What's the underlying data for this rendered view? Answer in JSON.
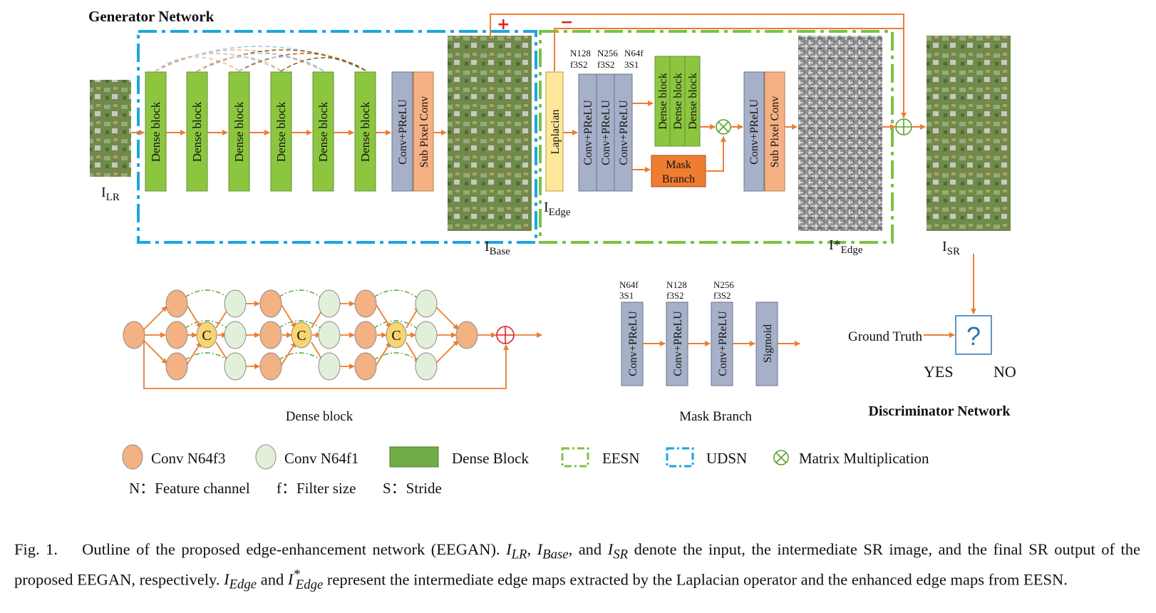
{
  "generator": {
    "title": "Generator Network",
    "input_label": "I",
    "input_sub": "LR",
    "dense_block_label": "Dense block",
    "dense_blocks": [
      "Dense block",
      "Dense block",
      "Dense block",
      "Dense block",
      "Dense block",
      "Dense block"
    ],
    "conv_prelu": "Conv+PReLU",
    "sub_pixel": "Sub Pixel Conv",
    "base_label": "I",
    "base_sub": "Base",
    "plus_sign": "+",
    "minus_sign": "−"
  },
  "eesn": {
    "laplacian": "Laplacian",
    "edge_label": "I",
    "edge_sub": "Edge",
    "conv_params": [
      [
        "N128",
        "f3S2"
      ],
      [
        "N256",
        "f3S2"
      ],
      [
        "N64f",
        "3S1"
      ]
    ],
    "conv_labels": [
      "Conv+PReLU",
      "Conv+PReLU",
      "Conv+PReLU"
    ],
    "dense_blocks": [
      "Dense block",
      "Dense block",
      "Dense block"
    ],
    "mask_branch": [
      "Mask",
      "Branch"
    ],
    "conv_prelu": "Conv+PReLU",
    "sub_pixel": "Sub Pixel Conv",
    "edge_star_label": "I*",
    "edge_star_sub": "Edge"
  },
  "output": {
    "sr_label": "I",
    "sr_sub": "SR"
  },
  "dense_block_detail": {
    "title": "Dense block",
    "concat": "C"
  },
  "mask_branch_detail": {
    "title": "Mask Branch",
    "params": [
      [
        "N64f",
        "3S1"
      ],
      [
        "N128",
        "f3S2"
      ],
      [
        "N256",
        "f3S2"
      ]
    ],
    "blocks": [
      "Conv+PReLU",
      "Conv+PReLU",
      "Conv+PReLU",
      "Sigmoid"
    ]
  },
  "discriminator": {
    "title": "Discriminator Network",
    "ground_truth": "Ground Truth",
    "question": "?",
    "yes": "YES",
    "no": "NO"
  },
  "legend": {
    "items": [
      "Conv N64f3",
      "Conv N64f1",
      "Dense Block",
      "EESN",
      "UDSN",
      "Matrix Multiplication"
    ],
    "abbrev": [
      "N：Feature channel",
      "f：Filter size",
      "S：Stride"
    ]
  },
  "caption": {
    "fig": "Fig. 1.",
    "text1": "Outline of the proposed edge-enhancement network (EEGAN).",
    "sym_lr": "I",
    "sub_lr": "LR",
    "sym_base": "I",
    "sub_base": "Base",
    "text2": ", and",
    "sym_sr": "I",
    "sub_sr": "SR",
    "text3": "denote the input, the intermediate SR image, and the final SR output of the proposed EEGAN, respectively.",
    "sym_edge": "I",
    "sub_edge": "Edge",
    "text4": "and",
    "sym_edge2": "I",
    "sup_edge2": "*",
    "sub_edge2": "Edge",
    "text5": "represent the intermediate edge maps extracted by the Laplacian operator and the enhanced edge maps from EESN."
  },
  "colors": {
    "dense_green": "#8cc63f",
    "conv_gray": "#a6b0c8",
    "subpixel_orange": "#f5b183",
    "laplacian_yellow": "#fde79a",
    "mask_orange": "#ee7d31",
    "arrow": "#ed7d31",
    "udsn_blue": "#1ca6e0",
    "eesn_green": "#7cc242",
    "red": "#e02020",
    "node_orange": "#f4b183",
    "node_green": "#e2f0d9",
    "node_concat": "#f9d571"
  }
}
